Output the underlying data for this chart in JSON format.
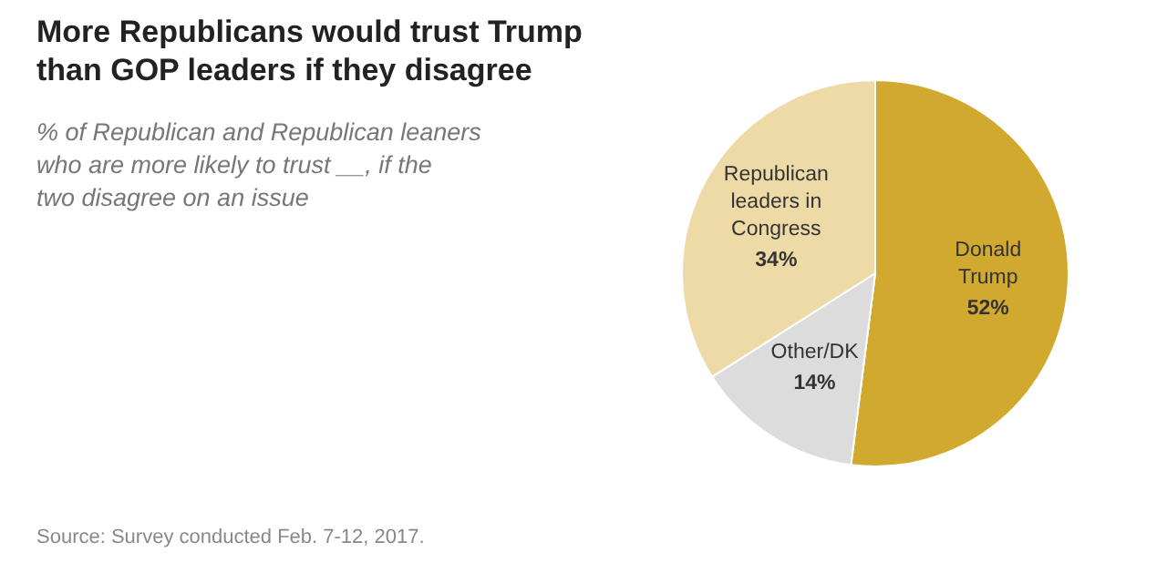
{
  "chart_data": {
    "type": "pie",
    "title": "More Republicans would trust Trump than GOP leaders if they disagree",
    "subtitle": "% of Republican and Republican leaners who are more likely to trust __, if the two disagree on an issue",
    "categories": [
      "Donald Trump",
      "Other/DK",
      "Republican leaders in Congress"
    ],
    "values": [
      52,
      14,
      34
    ],
    "colors": [
      "#d2a92f",
      "#dcdcdc",
      "#eddaa6"
    ],
    "value_labels": [
      "52%",
      "14%",
      "34%"
    ],
    "annotations": [
      "Source: Survey conducted Feb. 7-12, 2017."
    ]
  }
}
